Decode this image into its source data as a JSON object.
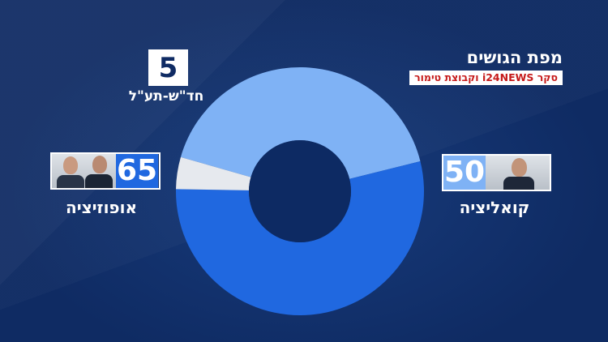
{
  "title": "מפת הגושים",
  "subtitle": "סקר i24NEWS וקבוצת טימור",
  "colors": {
    "background": "#0f2b63",
    "opposition": "#2068e0",
    "coalition": "#7fb2f5",
    "other": "#e6e9ee",
    "center_hole": "#0d2a63",
    "subtitle_text": "#c61a1a"
  },
  "chart_data": {
    "type": "pie",
    "variant": "donut",
    "total": 120,
    "slices": [
      {
        "name": "קואליציה",
        "value": 50,
        "color": "#7fb2f5"
      },
      {
        "name": "אופוזיציה",
        "value": 65,
        "color": "#2068e0"
      },
      {
        "name": "חד\"ש-תע\"ל",
        "value": 5,
        "color": "#e6e9ee"
      }
    ]
  },
  "blocs": {
    "opposition": {
      "label": "אופוזיציה",
      "seats": "65",
      "photo_icon": "two-leaders-photo-icon"
    },
    "coalition": {
      "label": "קואליציה",
      "seats": "50",
      "photo_icon": "leader-photo-icon"
    },
    "other": {
      "label": "חד\"ש-תע\"ל",
      "seats": "5"
    }
  }
}
